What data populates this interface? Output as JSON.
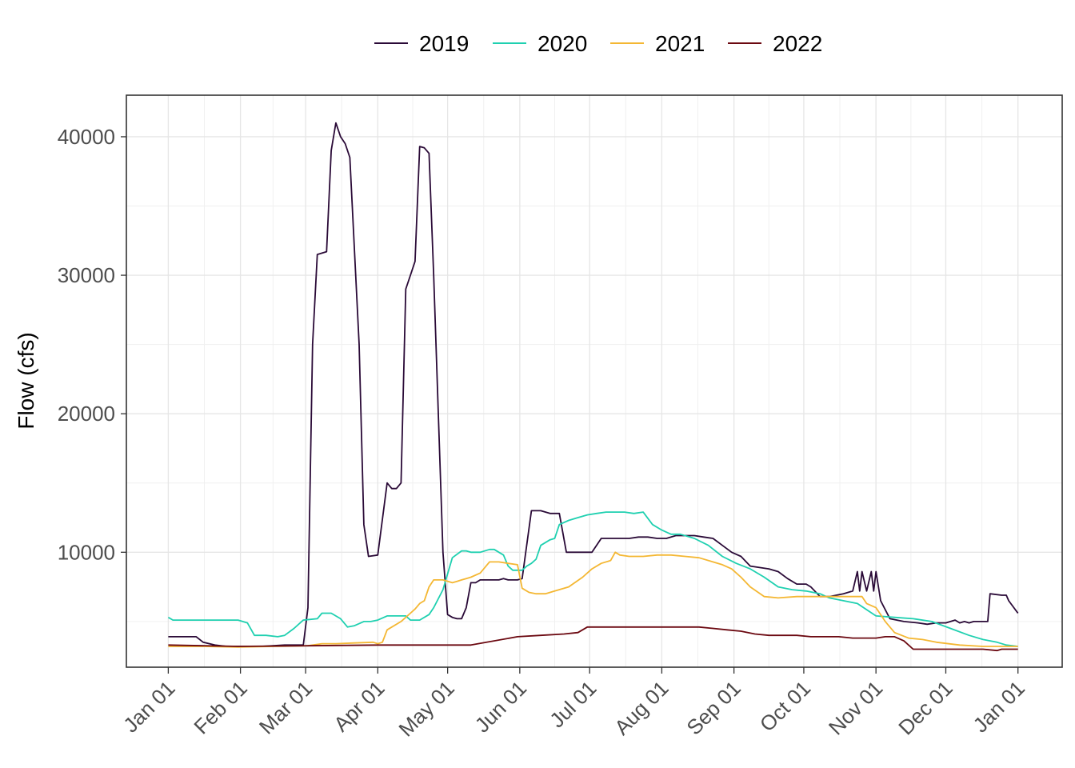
{
  "chart_data": {
    "type": "line",
    "ylabel": "Flow (cfs)",
    "xlabel": "",
    "x_tick_labels": [
      "Jan 01",
      "Feb 01",
      "Mar 01",
      "Apr 01",
      "May 01",
      "Jun 01",
      "Jul 01",
      "Aug 01",
      "Sep 01",
      "Oct 01",
      "Nov 01",
      "Dec 01",
      "Jan 01"
    ],
    "x_tick_days": [
      0,
      31,
      59,
      90,
      120,
      151,
      181,
      212,
      243,
      273,
      304,
      334,
      365
    ],
    "y_ticks": [
      10000,
      20000,
      30000,
      40000
    ],
    "y_tick_labels": [
      "10000",
      "20000",
      "30000",
      "40000"
    ],
    "xlim_days": [
      -18,
      384
    ],
    "ylim": [
      1700,
      43000
    ],
    "grid": true,
    "legend_position": "top",
    "series": [
      {
        "name": "2019",
        "color": "#2a0a37",
        "x": [
          0,
          12,
          15,
          20,
          25,
          40,
          50,
          56,
          58,
          60,
          62,
          64,
          66,
          68,
          70,
          72,
          74,
          76,
          78,
          82,
          84,
          86,
          90,
          94,
          96,
          98,
          100,
          102,
          104,
          106,
          108,
          110,
          112,
          114,
          116,
          118,
          120,
          122,
          124,
          126,
          128,
          130,
          132,
          134,
          136,
          138,
          140,
          142,
          144,
          146,
          148,
          150,
          152,
          156,
          160,
          164,
          168,
          171,
          174,
          178,
          182,
          186,
          190,
          194,
          198,
          202,
          206,
          210,
          214,
          218,
          222,
          226,
          230,
          234,
          238,
          242,
          246,
          250,
          254,
          258,
          262,
          266,
          270,
          274,
          276,
          280,
          284,
          290,
          294,
          296,
          297,
          298,
          300,
          302,
          303,
          304,
          306,
          310,
          316,
          322,
          326,
          330,
          334,
          338,
          340,
          342,
          344,
          346,
          352,
          353,
          358,
          360,
          361,
          365
        ],
        "y": [
          3900,
          3900,
          3500,
          3300,
          3200,
          3200,
          3300,
          3300,
          3300,
          6000,
          25000,
          31500,
          31600,
          31700,
          39000,
          41000,
          40000,
          39500,
          38500,
          25000,
          12000,
          9700,
          9800,
          15000,
          14600,
          14600,
          15000,
          29000,
          30000,
          31000,
          39300,
          39200,
          38800,
          30000,
          20000,
          10000,
          5500,
          5300,
          5200,
          5200,
          6000,
          7800,
          7800,
          8000,
          8000,
          8000,
          8000,
          8000,
          8100,
          8000,
          8000,
          8000,
          8100,
          13000,
          13000,
          12800,
          12800,
          10000,
          10000,
          10000,
          10000,
          11000,
          11000,
          11000,
          11000,
          11100,
          11100,
          11000,
          11000,
          11200,
          11200,
          11200,
          11100,
          11000,
          10500,
          10000,
          9700,
          9000,
          8900,
          8800,
          8600,
          8100,
          7700,
          7700,
          7500,
          6800,
          6800,
          7000,
          7200,
          8600,
          7200,
          8600,
          7200,
          8600,
          7200,
          8600,
          6500,
          5200,
          5000,
          4900,
          4800,
          4900,
          4900,
          5100,
          4900,
          5000,
          4900,
          5000,
          5000,
          7000,
          6900,
          6900,
          6500,
          5600
        ]
      },
      {
        "name": "2020",
        "color": "#1fd0b0",
        "x": [
          0,
          2,
          10,
          20,
          30,
          34,
          37,
          42,
          47,
          50,
          54,
          58,
          64,
          66,
          70,
          74,
          77,
          80,
          84,
          87,
          90,
          94,
          97,
          102,
          104,
          108,
          112,
          114,
          118,
          122,
          126,
          128,
          130,
          134,
          138,
          140,
          142,
          144,
          146,
          148,
          150,
          152,
          154,
          156,
          158,
          160,
          164,
          166,
          168,
          172,
          176,
          180,
          184,
          188,
          192,
          196,
          200,
          204,
          208,
          212,
          216,
          220,
          226,
          232,
          238,
          244,
          250,
          256,
          262,
          268,
          274,
          280,
          284,
          290,
          296,
          304,
          312,
          320,
          328,
          336,
          344,
          350,
          356,
          360,
          365
        ],
        "y": [
          5300,
          5100,
          5100,
          5100,
          5100,
          4900,
          4000,
          4000,
          3900,
          4000,
          4500,
          5100,
          5200,
          5600,
          5600,
          5200,
          4600,
          4700,
          5000,
          5000,
          5100,
          5400,
          5400,
          5400,
          5100,
          5100,
          5500,
          6000,
          7300,
          9600,
          10100,
          10100,
          10000,
          10000,
          10200,
          10200,
          10000,
          9800,
          9000,
          8700,
          8700,
          8700,
          9000,
          9200,
          9500,
          10500,
          10900,
          11000,
          12000,
          12300,
          12500,
          12700,
          12800,
          12900,
          12900,
          12900,
          12800,
          12900,
          12000,
          11600,
          11300,
          11300,
          11000,
          10500,
          9700,
          9200,
          8800,
          8200,
          7500,
          7300,
          7200,
          7000,
          6700,
          6500,
          6300,
          5400,
          5300,
          5200,
          5000,
          4500,
          4000,
          3700,
          3500,
          3300,
          3200
        ]
      },
      {
        "name": "2021",
        "color": "#f4b733",
        "x": [
          0,
          15,
          30,
          45,
          60,
          66,
          72,
          80,
          88,
          90,
          92,
          94,
          100,
          104,
          106,
          108,
          110,
          112,
          114,
          118,
          122,
          124,
          126,
          128,
          130,
          134,
          138,
          142,
          146,
          150,
          152,
          155,
          158,
          162,
          166,
          172,
          178,
          182,
          186,
          190,
          192,
          194,
          198,
          204,
          210,
          216,
          222,
          228,
          234,
          238,
          242,
          246,
          250,
          256,
          262,
          270,
          278,
          284,
          290,
          294,
          296,
          298,
          300,
          304,
          308,
          312,
          318,
          324,
          330,
          340,
          350,
          360,
          365
        ],
        "y": [
          3200,
          3200,
          3150,
          3200,
          3250,
          3400,
          3400,
          3450,
          3500,
          3400,
          3500,
          4400,
          5000,
          5600,
          5900,
          6300,
          6500,
          7500,
          8000,
          8000,
          7800,
          7900,
          8000,
          8100,
          8200,
          8500,
          9300,
          9300,
          9200,
          9100,
          7400,
          7100,
          7000,
          7000,
          7200,
          7500,
          8200,
          8800,
          9200,
          9400,
          10000,
          9800,
          9700,
          9700,
          9800,
          9800,
          9700,
          9600,
          9300,
          9100,
          8800,
          8200,
          7500,
          6800,
          6700,
          6800,
          6800,
          6800,
          6800,
          6800,
          6800,
          6800,
          6300,
          6000,
          5000,
          4200,
          3800,
          3700,
          3500,
          3300,
          3200,
          3200,
          3200
        ]
      },
      {
        "name": "2022",
        "color": "#6b0810",
        "x": [
          0,
          30,
          60,
          90,
          110,
          120,
          130,
          150,
          160,
          170,
          176,
          180,
          186,
          192,
          198,
          204,
          210,
          216,
          222,
          228,
          234,
          240,
          246,
          252,
          258,
          264,
          270,
          276,
          282,
          288,
          294,
          300,
          304,
          308,
          312,
          316,
          320,
          330,
          340,
          350,
          356,
          358,
          360,
          362,
          365
        ],
        "y": [
          3300,
          3200,
          3250,
          3300,
          3300,
          3300,
          3300,
          3900,
          4000,
          4100,
          4200,
          4600,
          4600,
          4600,
          4600,
          4600,
          4600,
          4600,
          4600,
          4600,
          4500,
          4400,
          4300,
          4100,
          4000,
          4000,
          4000,
          3900,
          3900,
          3900,
          3800,
          3800,
          3800,
          3900,
          3900,
          3600,
          3000,
          3000,
          3000,
          3000,
          2900,
          3000,
          3000,
          3000,
          3000
        ]
      }
    ]
  }
}
